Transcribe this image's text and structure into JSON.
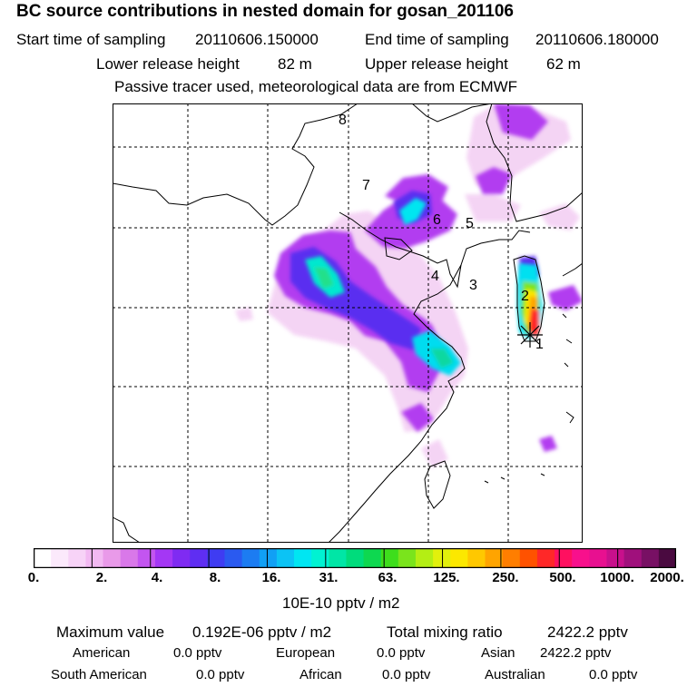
{
  "header": {
    "title": "BC  source contributions in nested domain for gosan_201106",
    "start_label": "Start time of sampling",
    "start_value": "20110606.150000",
    "end_label": "End time of sampling",
    "end_value": "20110606.180000",
    "lower_label": "Lower release height",
    "lower_value": "82 m",
    "upper_label": "Upper release height",
    "upper_value": "62 m",
    "note": "Passive tracer used, meteorological data are from ECMWF"
  },
  "map": {
    "markers": [
      "1",
      "2",
      "3",
      "4",
      "5",
      "6",
      "7",
      "8"
    ]
  },
  "colorbar": {
    "ticks": [
      "0.",
      "2.",
      "4.",
      "8.",
      "16.",
      "31.",
      "63.",
      "125.",
      "250.",
      "500.",
      "1000.",
      "2000."
    ],
    "colors": [
      "#ffffff",
      "#fbe9fb",
      "#f7d3f7",
      "#f2b9f2",
      "#e99ae9",
      "#d978e9",
      "#c355f0",
      "#a437f5",
      "#7f2bf2",
      "#5f2ef2",
      "#3f3cf2",
      "#2a5af0",
      "#1c7cf2",
      "#11a0f5",
      "#0cc3f5",
      "#00e6f2",
      "#00f2d2",
      "#00e6a6",
      "#00dc7c",
      "#0ed850",
      "#3ede1c",
      "#7ae41c",
      "#b4ee14",
      "#e2f00c",
      "#fce800",
      "#ffc800",
      "#ffa400",
      "#ff7e00",
      "#ff5200",
      "#ff2828",
      "#ff1060",
      "#f8108c",
      "#e81090",
      "#c8108c",
      "#a0107c",
      "#781064",
      "#4a0a40"
    ],
    "unit": "10E-10 pptv / m2"
  },
  "summary": {
    "max_label": "Maximum value",
    "max_value": "0.192E-06 pptv / m2",
    "total_label": "Total mixing ratio",
    "total_value": "2422.2 pptv",
    "regions": [
      {
        "name": "American",
        "value": "0.0 pptv"
      },
      {
        "name": "European",
        "value": "0.0 pptv"
      },
      {
        "name": "Asian",
        "value": "2422.2 pptv"
      },
      {
        "name": "South American",
        "value": "0.0 pptv"
      },
      {
        "name": "African",
        "value": "0.0 pptv"
      },
      {
        "name": "Australian",
        "value": "0.0 pptv"
      }
    ]
  }
}
